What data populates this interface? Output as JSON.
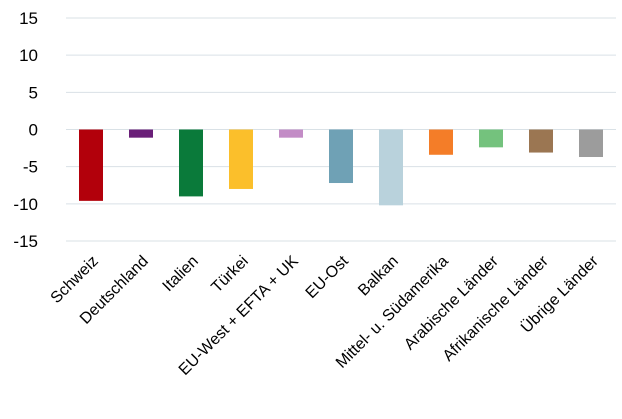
{
  "chart_data": {
    "type": "bar",
    "title": "",
    "xlabel": "",
    "ylabel": "",
    "ylim": [
      -15,
      15
    ],
    "yticks": [
      15,
      10,
      5,
      0,
      -5,
      -10,
      -15
    ],
    "grid": true,
    "legend": "none",
    "categories": [
      "Schweiz",
      "Deutschland",
      "Italien",
      "Türkei",
      "EU-West + EFTA + UK",
      "EU-Ost",
      "Balkan",
      "Mittel- u. Südamerika",
      "Arabische Länder",
      "Afrikanische Länder",
      "Übrige Länder"
    ],
    "values": [
      -9.6,
      -1.1,
      -9.0,
      -8.0,
      -1.1,
      -7.2,
      -10.2,
      -3.4,
      -2.4,
      -3.1,
      -3.7
    ],
    "colors": [
      "#b2000b",
      "#6a1f78",
      "#0a7a3a",
      "#fbbf2b",
      "#c38cc6",
      "#6fa1b5",
      "#b9d2dc",
      "#f47d28",
      "#74c27d",
      "#9b7652",
      "#9c9c9c"
    ]
  }
}
